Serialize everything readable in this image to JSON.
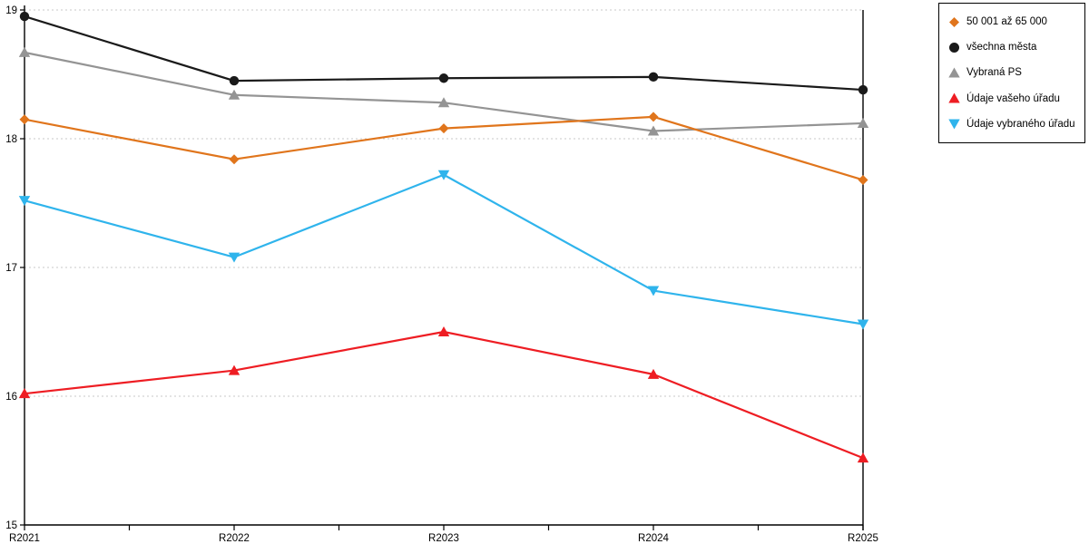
{
  "chart_data": {
    "type": "line",
    "categories": [
      "R2021",
      "R2022",
      "R2023",
      "R2024",
      "R2025"
    ],
    "series": [
      {
        "name": "50 001 až 65 000",
        "marker": "diamond",
        "color": "#E0751C",
        "values": [
          18.15,
          17.84,
          18.08,
          18.17,
          17.68
        ]
      },
      {
        "name": "všechna města",
        "marker": "circle",
        "color": "#1A1A1A",
        "values": [
          18.95,
          18.45,
          18.47,
          18.48,
          18.38
        ]
      },
      {
        "name": "Vybraná PS",
        "marker": "triangle-up",
        "color": "#949494",
        "values": [
          18.67,
          18.34,
          18.28,
          18.06,
          18.12
        ]
      },
      {
        "name": "Údaje vašeho úřadu",
        "marker": "triangle-up",
        "color": "#EE1D23",
        "values": [
          16.02,
          16.2,
          16.5,
          16.17,
          15.52
        ]
      },
      {
        "name": "Údaje vybraného úřadu",
        "marker": "triangle-down",
        "color": "#2FB4EC",
        "values": [
          17.52,
          17.08,
          17.72,
          16.82,
          16.56
        ]
      }
    ],
    "ylim": [
      15,
      19
    ],
    "yticks": [
      15,
      16,
      17,
      18,
      19
    ],
    "xlabel": "",
    "ylabel": "",
    "title": "",
    "grid": "horizontal-dotted",
    "legend_position": "top-right"
  },
  "colors": {
    "grid": "#C9C9C9",
    "axis": "#000000",
    "background": "#FFFFFF",
    "label_text": "#000000"
  }
}
